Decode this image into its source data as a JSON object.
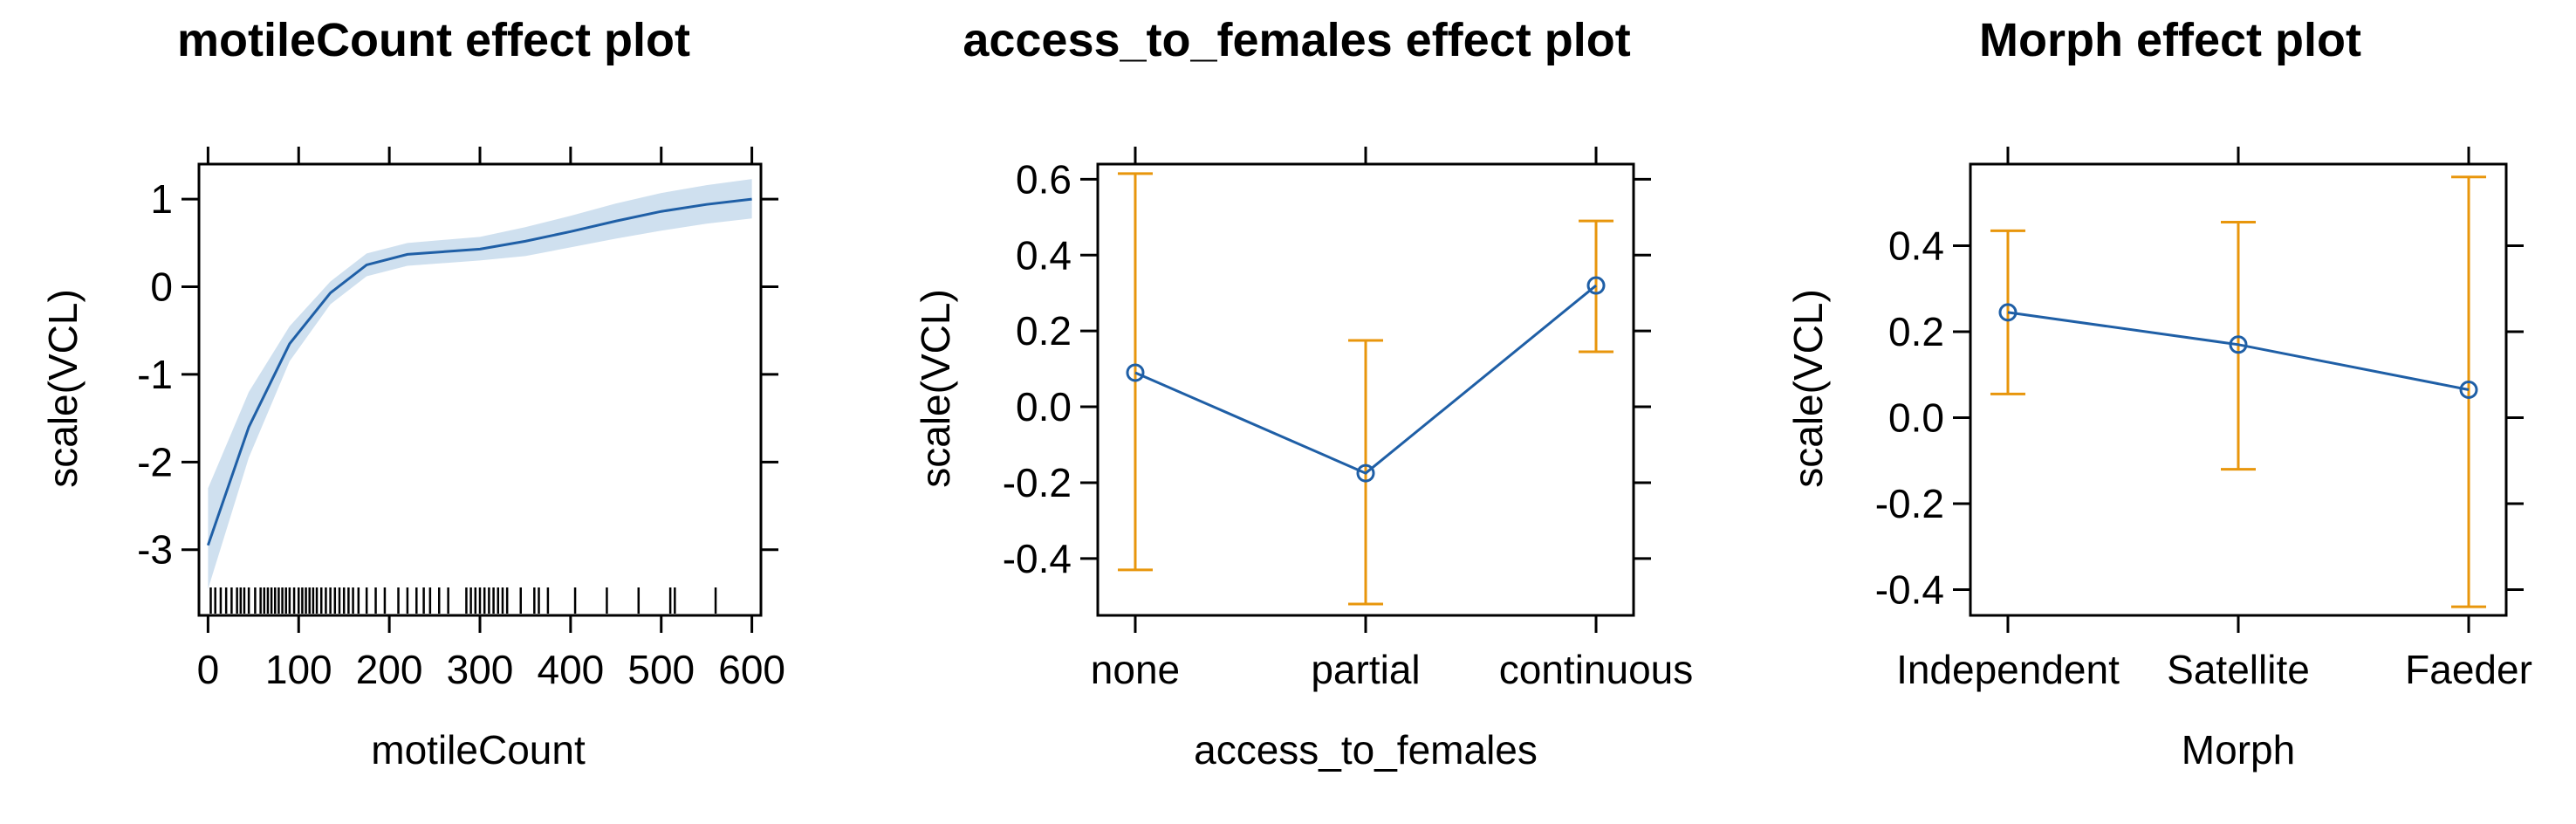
{
  "colors": {
    "line": "#1f5fa6",
    "band": "#cfe0ef",
    "errorbar": "#e8960c",
    "frame": "#000000"
  },
  "chart_data": [
    {
      "type": "line",
      "title": "motileCount effect plot",
      "xlabel": "motileCount",
      "ylabel": "scale(VCL)",
      "xlim": [
        -10,
        610
      ],
      "ylim": [
        -3.75,
        1.4
      ],
      "xticks": [
        0,
        100,
        200,
        300,
        400,
        500,
        600
      ],
      "xtick_labels": [
        "0",
        "100",
        "200",
        "300",
        "400",
        "500",
        "600"
      ],
      "yticks": [
        -3,
        -2,
        -1,
        0,
        1
      ],
      "ytick_labels": [
        "-3",
        "-2",
        "-1",
        "0",
        "1"
      ],
      "x": [
        0,
        45,
        90,
        135,
        175,
        220,
        300,
        350,
        400,
        450,
        500,
        550,
        600
      ],
      "y": [
        -2.95,
        -1.6,
        -0.65,
        -0.07,
        0.25,
        0.37,
        0.43,
        0.52,
        0.63,
        0.75,
        0.86,
        0.94,
        1.0
      ],
      "ci_lower": [
        -3.45,
        -1.95,
        -0.85,
        -0.2,
        0.12,
        0.24,
        0.3,
        0.35,
        0.45,
        0.55,
        0.64,
        0.72,
        0.78
      ],
      "ci_upper": [
        -2.3,
        -1.2,
        -0.45,
        0.06,
        0.38,
        0.5,
        0.57,
        0.68,
        0.81,
        0.95,
        1.07,
        1.16,
        1.23
      ],
      "rug": [
        3,
        8,
        14,
        20,
        26,
        32,
        36,
        40,
        45,
        52,
        58,
        62,
        66,
        70,
        74,
        78,
        82,
        86,
        90,
        95,
        100,
        104,
        108,
        112,
        116,
        120,
        125,
        130,
        135,
        140,
        145,
        150,
        155,
        160,
        166,
        175,
        185,
        195,
        210,
        220,
        230,
        238,
        245,
        255,
        265,
        285,
        290,
        295,
        300,
        305,
        310,
        315,
        320,
        325,
        330,
        345,
        360,
        365,
        375,
        405,
        440,
        475,
        510,
        515,
        560
      ],
      "grid": false
    },
    {
      "type": "line",
      "title": "access_to_females effect plot",
      "xlabel": "access_to_females",
      "ylabel": "scale(VCL)",
      "categories": [
        "none",
        "partial",
        "continuous"
      ],
      "ylim": [
        -0.55,
        0.64
      ],
      "yticks": [
        -0.4,
        -0.2,
        0.0,
        0.2,
        0.4,
        0.6
      ],
      "ytick_labels": [
        "-0.4",
        "-0.2",
        "0.0",
        "0.2",
        "0.4",
        "0.6"
      ],
      "values": [
        0.09,
        -0.175,
        0.32
      ],
      "lower": [
        -0.43,
        -0.52,
        0.145
      ],
      "upper": [
        0.615,
        0.175,
        0.49
      ],
      "grid": false
    },
    {
      "type": "line",
      "title": "Morph effect plot",
      "xlabel": "Morph",
      "ylabel": "scale(VCL)",
      "categories": [
        "Independent",
        "Satellite",
        "Faeder"
      ],
      "ylim": [
        -0.46,
        0.59
      ],
      "yticks": [
        -0.4,
        -0.2,
        0.0,
        0.2,
        0.4
      ],
      "ytick_labels": [
        "-0.4",
        "-0.2",
        "0.0",
        "0.2",
        "0.4"
      ],
      "values": [
        0.245,
        0.17,
        0.065
      ],
      "lower": [
        0.055,
        -0.12,
        -0.44
      ],
      "upper": [
        0.435,
        0.455,
        0.56
      ],
      "grid": false
    }
  ]
}
